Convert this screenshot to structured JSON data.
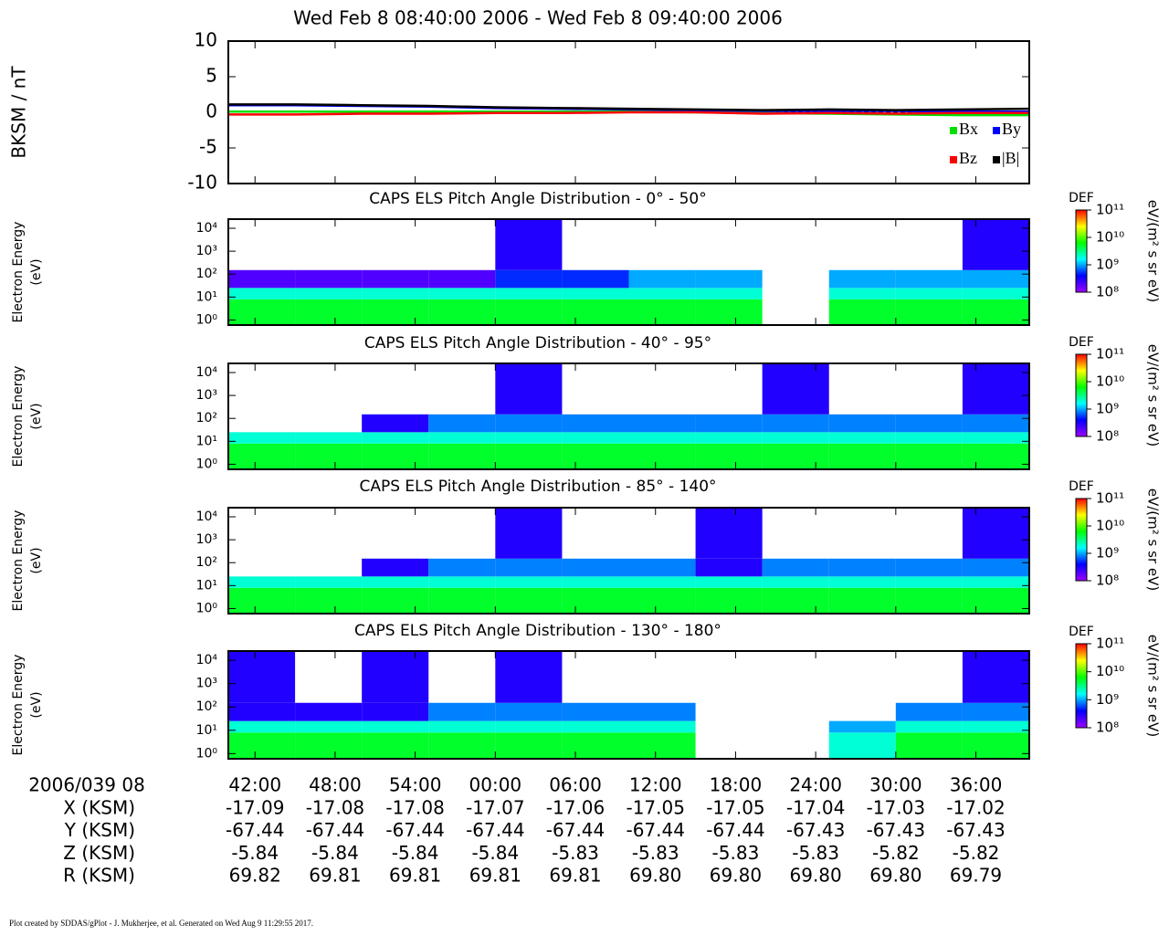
{
  "title": "Wed Feb 8 08:40:00 2006 - Wed Feb 8 09:40:00 2006",
  "time_axis": {
    "label": "2006/039 08",
    "xlim": [
      "08:40",
      "09:40"
    ],
    "ticks": [
      {
        "value": "08:42",
        "label": "42:00"
      },
      {
        "value": "08:48",
        "label": "48:00"
      },
      {
        "value": "08:54",
        "label": "54:00"
      },
      {
        "value": "09:00",
        "label": "00:00"
      },
      {
        "value": "09:06",
        "label": "06:00"
      },
      {
        "value": "09:12",
        "label": "12:00"
      },
      {
        "value": "09:18",
        "label": "18:00"
      },
      {
        "value": "09:24",
        "label": "24:00"
      },
      {
        "value": "09:30",
        "label": "30:00"
      },
      {
        "value": "09:36",
        "label": "36:00"
      }
    ]
  },
  "ephemeris": [
    {
      "label": "X (KSM)",
      "values": [
        "-17.09",
        "-17.08",
        "-17.08",
        "-17.07",
        "-17.06",
        "-17.05",
        "-17.05",
        "-17.04",
        "-17.03",
        "-17.02"
      ]
    },
    {
      "label": "Y (KSM)",
      "values": [
        "-67.44",
        "-67.44",
        "-67.44",
        "-67.44",
        "-67.44",
        "-67.44",
        "-67.44",
        "-67.43",
        "-67.43",
        "-67.43"
      ]
    },
    {
      "label": "Z (KSM)",
      "values": [
        "-5.84",
        "-5.84",
        "-5.84",
        "-5.84",
        "-5.83",
        "-5.83",
        "-5.83",
        "-5.83",
        "-5.82",
        "-5.82"
      ]
    },
    {
      "label": "R (KSM)",
      "values": [
        "69.82",
        "69.81",
        "69.81",
        "69.81",
        "69.81",
        "69.80",
        "69.80",
        "69.80",
        "69.80",
        "69.79"
      ]
    }
  ],
  "footer": "Plot created by SDDAS/gPlot - J. Mukherjee, et al.  Generated on Wed Aug 9 11:29:55 2017.",
  "chart_data": [
    {
      "type": "line",
      "ylabel": "BKSM / nT",
      "ylim": [
        -10,
        10
      ],
      "yticks": [
        -10,
        -5,
        0,
        5,
        10
      ],
      "x": [
        "08:40",
        "08:45",
        "08:50",
        "08:55",
        "09:00",
        "09:05",
        "09:10",
        "09:15",
        "09:20",
        "09:25",
        "09:30",
        "09:35",
        "09:40"
      ],
      "series": [
        {
          "name": "Bx",
          "color": "#00e000",
          "values": [
            0.1,
            0.1,
            0.1,
            0.1,
            0.1,
            0.1,
            0.1,
            0.0,
            -0.1,
            -0.2,
            -0.3,
            -0.4,
            -0.4
          ]
        },
        {
          "name": "By",
          "color": "#0000ff",
          "values": [
            1.0,
            1.0,
            0.9,
            0.8,
            0.6,
            0.5,
            0.4,
            0.3,
            0.2,
            0.2,
            0.2,
            0.1,
            0.1
          ]
        },
        {
          "name": "Bz",
          "color": "#ff0000",
          "values": [
            -0.3,
            -0.3,
            -0.2,
            -0.2,
            -0.1,
            -0.1,
            0.0,
            0.0,
            -0.2,
            -0.1,
            -0.2,
            -0.1,
            -0.1
          ]
        },
        {
          "name": "|B|",
          "color": "#000000",
          "values": [
            1.1,
            1.1,
            1.0,
            0.9,
            0.7,
            0.6,
            0.5,
            0.4,
            0.3,
            0.4,
            0.3,
            0.4,
            0.5
          ]
        }
      ]
    },
    {
      "type": "spectrogram",
      "title": "CAPS ELS Pitch Angle Distribution - 0° - 50°",
      "ylabel": [
        "Electron Energy",
        "(eV)"
      ],
      "ylim": [
        0.6,
        25000
      ],
      "log": true,
      "yticks": [
        {
          "value": 1,
          "label": "10⁰"
        },
        {
          "value": 10,
          "label": "10¹"
        },
        {
          "value": 100,
          "label": "10²"
        },
        {
          "value": 1000,
          "label": "10³"
        },
        {
          "value": 10000,
          "label": "10⁴"
        }
      ],
      "x_bins": [
        "08:40",
        "08:45",
        "08:50",
        "08:55",
        "09:00",
        "09:05",
        "09:10",
        "09:15",
        "09:20",
        "09:25",
        "09:30",
        "09:35",
        "09:40"
      ],
      "energy_bins": [
        0.6,
        8,
        25,
        150,
        25000
      ],
      "values": [
        [
          5000000000.0,
          5000000000.0,
          5000000000.0,
          5000000000.0,
          5000000000.0,
          5000000000.0,
          5000000000.0,
          5000000000.0,
          null,
          5000000000.0,
          5000000000.0,
          5000000000.0
        ],
        [
          2000000000.0,
          2000000000.0,
          2000000000.0,
          2000000000.0,
          2000000000.0,
          2000000000.0,
          2000000000.0,
          2000000000.0,
          null,
          2000000000.0,
          2000000000.0,
          2000000000.0
        ],
        [
          200000000.0,
          200000000.0,
          200000000.0,
          200000000.0,
          500000000.0,
          500000000.0,
          1000000000.0,
          1000000000.0,
          null,
          1000000000.0,
          1000000000.0,
          1000000000.0
        ],
        [
          null,
          null,
          null,
          null,
          300000000.0,
          null,
          null,
          null,
          null,
          null,
          null,
          300000000.0
        ]
      ],
      "colorbar": {
        "label": "DEF",
        "units": "eV/(m² s sr eV)",
        "zlim": [
          100000000.0,
          100000000000.0
        ],
        "ticks": [
          {
            "value": 100000000.0,
            "label": "10⁸"
          },
          {
            "value": 1000000000.0,
            "label": "10⁹"
          },
          {
            "value": 10000000000.0,
            "label": "10¹⁰"
          },
          {
            "value": 100000000000.0,
            "label": "10¹¹"
          }
        ]
      },
      "colormap": [
        "#a000ff",
        "#0000ff",
        "#00ffff",
        "#00ff00",
        "#ffff00",
        "#ff0000"
      ]
    },
    {
      "type": "spectrogram",
      "title": "CAPS ELS Pitch Angle Distribution - 40° - 95°",
      "ylabel": [
        "Electron Energy",
        "(eV)"
      ],
      "ylim": [
        0.6,
        25000
      ],
      "log": true,
      "yticks": [
        {
          "value": 1,
          "label": "10⁰"
        },
        {
          "value": 10,
          "label": "10¹"
        },
        {
          "value": 100,
          "label": "10²"
        },
        {
          "value": 1000,
          "label": "10³"
        },
        {
          "value": 10000,
          "label": "10⁴"
        }
      ],
      "x_bins": [
        "08:40",
        "08:45",
        "08:50",
        "08:55",
        "09:00",
        "09:05",
        "09:10",
        "09:15",
        "09:20",
        "09:25",
        "09:30",
        "09:35",
        "09:40"
      ],
      "energy_bins": [
        0.6,
        8,
        25,
        150,
        25000
      ],
      "values": [
        [
          5000000000.0,
          5000000000.0,
          5000000000.0,
          5000000000.0,
          5000000000.0,
          5000000000.0,
          5000000000.0,
          5000000000.0,
          5000000000.0,
          5000000000.0,
          5000000000.0,
          5000000000.0
        ],
        [
          2000000000.0,
          2000000000.0,
          2000000000.0,
          2000000000.0,
          2000000000.0,
          2000000000.0,
          2000000000.0,
          2000000000.0,
          2000000000.0,
          2000000000.0,
          2000000000.0,
          2000000000.0
        ],
        [
          null,
          null,
          300000000.0,
          800000000.0,
          800000000.0,
          800000000.0,
          800000000.0,
          800000000.0,
          800000000.0,
          800000000.0,
          800000000.0,
          800000000.0
        ],
        [
          null,
          null,
          null,
          null,
          300000000.0,
          null,
          null,
          null,
          300000000.0,
          null,
          null,
          300000000.0
        ]
      ],
      "colorbar": {
        "label": "DEF",
        "units": "eV/(m² s sr eV)",
        "zlim": [
          100000000.0,
          100000000000.0
        ],
        "ticks": [
          {
            "value": 100000000.0,
            "label": "10⁸"
          },
          {
            "value": 1000000000.0,
            "label": "10⁹"
          },
          {
            "value": 10000000000.0,
            "label": "10¹⁰"
          },
          {
            "value": 100000000000.0,
            "label": "10¹¹"
          }
        ]
      },
      "colormap": [
        "#a000ff",
        "#0000ff",
        "#00ffff",
        "#00ff00",
        "#ffff00",
        "#ff0000"
      ]
    },
    {
      "type": "spectrogram",
      "title": "CAPS ELS Pitch Angle Distribution - 85° - 140°",
      "ylabel": [
        "Electron Energy",
        "(eV)"
      ],
      "ylim": [
        0.6,
        25000
      ],
      "log": true,
      "yticks": [
        {
          "value": 1,
          "label": "10⁰"
        },
        {
          "value": 10,
          "label": "10¹"
        },
        {
          "value": 100,
          "label": "10²"
        },
        {
          "value": 1000,
          "label": "10³"
        },
        {
          "value": 10000,
          "label": "10⁴"
        }
      ],
      "x_bins": [
        "08:40",
        "08:45",
        "08:50",
        "08:55",
        "09:00",
        "09:05",
        "09:10",
        "09:15",
        "09:20",
        "09:25",
        "09:30",
        "09:35",
        "09:40"
      ],
      "energy_bins": [
        0.6,
        8,
        25,
        150,
        25000
      ],
      "values": [
        [
          5000000000.0,
          5000000000.0,
          5000000000.0,
          5000000000.0,
          5000000000.0,
          5000000000.0,
          5000000000.0,
          5000000000.0,
          5000000000.0,
          5000000000.0,
          5000000000.0,
          5000000000.0
        ],
        [
          2000000000.0,
          2000000000.0,
          2000000000.0,
          2000000000.0,
          2000000000.0,
          2000000000.0,
          2000000000.0,
          2000000000.0,
          2000000000.0,
          2000000000.0,
          2000000000.0,
          2000000000.0
        ],
        [
          null,
          null,
          300000000.0,
          800000000.0,
          800000000.0,
          800000000.0,
          800000000.0,
          300000000.0,
          800000000.0,
          800000000.0,
          800000000.0,
          800000000.0
        ],
        [
          null,
          null,
          null,
          null,
          300000000.0,
          null,
          null,
          300000000.0,
          null,
          null,
          null,
          300000000.0
        ]
      ],
      "colorbar": {
        "label": "DEF",
        "units": "eV/(m² s sr eV)",
        "zlim": [
          100000000.0,
          100000000000.0
        ],
        "ticks": [
          {
            "value": 100000000.0,
            "label": "10⁸"
          },
          {
            "value": 1000000000.0,
            "label": "10⁹"
          },
          {
            "value": 10000000000.0,
            "label": "10¹⁰"
          },
          {
            "value": 100000000000.0,
            "label": "10¹¹"
          }
        ]
      },
      "colormap": [
        "#a000ff",
        "#0000ff",
        "#00ffff",
        "#00ff00",
        "#ffff00",
        "#ff0000"
      ]
    },
    {
      "type": "spectrogram",
      "title": "CAPS ELS Pitch Angle Distribution - 130° - 180°",
      "ylabel": [
        "Electron Energy",
        "(eV)"
      ],
      "ylim": [
        0.6,
        25000
      ],
      "log": true,
      "yticks": [
        {
          "value": 1,
          "label": "10⁰"
        },
        {
          "value": 10,
          "label": "10¹"
        },
        {
          "value": 100,
          "label": "10²"
        },
        {
          "value": 1000,
          "label": "10³"
        },
        {
          "value": 10000,
          "label": "10⁴"
        }
      ],
      "x_bins": [
        "08:40",
        "08:45",
        "08:50",
        "08:55",
        "09:00",
        "09:05",
        "09:10",
        "09:15",
        "09:20",
        "09:25",
        "09:30",
        "09:35",
        "09:40"
      ],
      "energy_bins": [
        0.6,
        8,
        25,
        150,
        25000
      ],
      "values": [
        [
          5000000000.0,
          5000000000.0,
          5000000000.0,
          5000000000.0,
          5000000000.0,
          5000000000.0,
          5000000000.0,
          null,
          null,
          2000000000.0,
          5000000000.0,
          5000000000.0
        ],
        [
          2000000000.0,
          2000000000.0,
          2000000000.0,
          2000000000.0,
          2000000000.0,
          2000000000.0,
          2000000000.0,
          null,
          null,
          1000000000.0,
          2000000000.0,
          2000000000.0
        ],
        [
          300000000.0,
          300000000.0,
          300000000.0,
          800000000.0,
          800000000.0,
          800000000.0,
          800000000.0,
          null,
          null,
          null,
          800000000.0,
          800000000.0
        ],
        [
          300000000.0,
          null,
          300000000.0,
          null,
          300000000.0,
          null,
          null,
          null,
          null,
          null,
          null,
          300000000.0
        ]
      ],
      "colorbar": {
        "label": "DEF",
        "units": "eV/(m² s sr eV)",
        "zlim": [
          100000000.0,
          100000000000.0
        ],
        "ticks": [
          {
            "value": 100000000.0,
            "label": "10⁸"
          },
          {
            "value": 1000000000.0,
            "label": "10⁹"
          },
          {
            "value": 10000000000.0,
            "label": "10¹⁰"
          },
          {
            "value": 100000000000.0,
            "label": "10¹¹"
          }
        ]
      },
      "colormap": [
        "#a000ff",
        "#0000ff",
        "#00ffff",
        "#00ff00",
        "#ffff00",
        "#ff0000"
      ]
    }
  ]
}
